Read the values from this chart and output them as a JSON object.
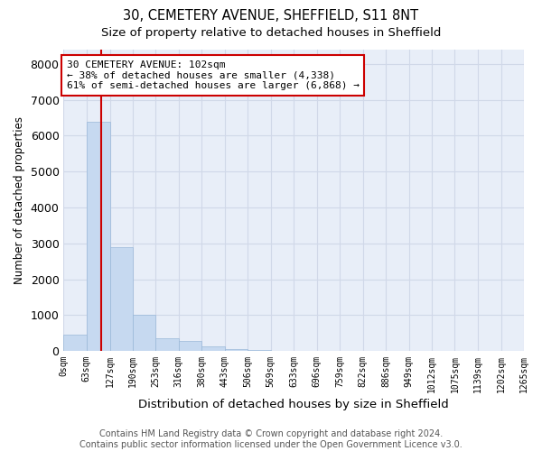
{
  "title_line1": "30, CEMETERY AVENUE, SHEFFIELD, S11 8NT",
  "title_line2": "Size of property relative to detached houses in Sheffield",
  "xlabel": "Distribution of detached houses by size in Sheffield",
  "ylabel": "Number of detached properties",
  "annotation_line1": "30 CEMETERY AVENUE: 102sqm",
  "annotation_line2": "← 38% of detached houses are smaller (4,338)",
  "annotation_line3": "61% of semi-detached houses are larger (6,868) →",
  "property_size": 102,
  "bin_edges": [
    0,
    63,
    127,
    190,
    253,
    316,
    380,
    443,
    506,
    569,
    633,
    696,
    759,
    822,
    886,
    949,
    1012,
    1075,
    1139,
    1202,
    1265
  ],
  "bar_heights": [
    450,
    6400,
    2900,
    1000,
    350,
    280,
    120,
    60,
    20,
    10,
    5,
    3,
    2,
    1,
    1,
    0,
    0,
    0,
    0,
    0
  ],
  "bar_color": "#c6d9f0",
  "bar_edgecolor": "#9ab8d8",
  "redline_color": "#cc0000",
  "annotation_box_edgecolor": "#cc0000",
  "annotation_box_facecolor": "#ffffff",
  "grid_color": "#d0d8e8",
  "bg_color": "#e8eef8",
  "ylim": [
    0,
    8400
  ],
  "yticks": [
    0,
    1000,
    2000,
    3000,
    4000,
    5000,
    6000,
    7000,
    8000
  ],
  "footer_line1": "Contains HM Land Registry data © Crown copyright and database right 2024.",
  "footer_line2": "Contains public sector information licensed under the Open Government Licence v3.0.",
  "title_fontsize": 10.5,
  "subtitle_fontsize": 9.5,
  "tick_label_fontsize": 7,
  "ylabel_fontsize": 8.5,
  "xlabel_fontsize": 9.5,
  "annotation_fontsize": 8,
  "footer_fontsize": 7
}
